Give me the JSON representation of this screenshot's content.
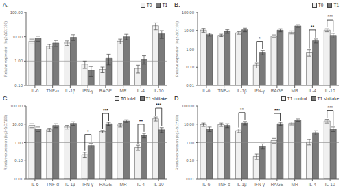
{
  "chart_data": [
    {
      "type": "bar",
      "title": "A.",
      "categories": [
        "IL-6",
        "TNF-α",
        "IL-1β",
        "IFN-γ",
        "RAGE",
        "MR",
        "IL-4",
        "IL-10"
      ],
      "series": [
        {
          "name": "T0",
          "color": "#f0f0f0",
          "values": [
            6.5,
            4.0,
            5.5,
            0.75,
            0.45,
            6.5,
            0.5,
            28.0
          ],
          "errors": [
            1.5,
            0.8,
            1.2,
            0.25,
            0.12,
            1.5,
            0.18,
            9.0
          ]
        },
        {
          "name": "T1",
          "color": "#7a7a7a",
          "values": [
            8.5,
            5.5,
            9.5,
            0.42,
            1.3,
            10.0,
            1.2,
            13.0
          ],
          "errors": [
            2.0,
            1.5,
            2.5,
            0.18,
            0.6,
            2.5,
            0.45,
            4.5
          ]
        }
      ],
      "ylim": [
        0.1,
        100.0
      ],
      "yticks": [
        {
          "value": 0.1,
          "label": "0.10"
        },
        {
          "value": 1.0,
          "label": "1.00"
        },
        {
          "value": 10.0,
          "label": "10.00"
        },
        {
          "value": 100.0,
          "label": "100.00"
        }
      ],
      "log": "y",
      "ylabel": "Relative expression (log2-ΔCt*100)",
      "legend": "upper right",
      "hlines": [
        1.0
      ],
      "annotations": []
    },
    {
      "type": "bar",
      "title": "B.",
      "categories": [
        "IL-6",
        "TNF-α",
        "IL-1β",
        "IFN-γ",
        "RAGE",
        "MR",
        "IL-4",
        "IL-10"
      ],
      "series": [
        {
          "name": "T0",
          "color": "#f0f0f0",
          "values": [
            10.5,
            5.5,
            7.5,
            0.13,
            5.0,
            8.0,
            0.65,
            10.5
          ],
          "errors": [
            2.5,
            0.8,
            1.2,
            0.04,
            0.8,
            1.5,
            0.25,
            2.0
          ]
        },
        {
          "name": "T1",
          "color": "#7a7a7a",
          "values": [
            6.0,
            9.0,
            11.0,
            0.65,
            10.5,
            18.0,
            2.8,
            5.5
          ],
          "errors": [
            1.0,
            2.0,
            2.5,
            0.18,
            2.0,
            3.0,
            0.7,
            1.5
          ]
        }
      ],
      "ylim": [
        0.01,
        100.0
      ],
      "yticks": [
        {
          "value": 0.01,
          "label": "0.01"
        },
        {
          "value": 0.1,
          "label": "0.10"
        },
        {
          "value": 1.0,
          "label": "1.00"
        },
        {
          "value": 10.0,
          "label": "10.00"
        },
        {
          "value": 100.0,
          "label": "100.00"
        }
      ],
      "log": "y",
      "ylabel": "Relative expression (log2-ΔCt*100)",
      "legend": "upper right",
      "hlines": [
        1.0
      ],
      "annotations": [
        {
          "text": "*",
          "category": "IFN-γ"
        },
        {
          "text": "**",
          "category": "IL-4"
        },
        {
          "text": "***",
          "category": "IL-10"
        }
      ]
    },
    {
      "type": "bar",
      "title": "C.",
      "categories": [
        "IL-6",
        "TNF-α",
        "IL-1β",
        "IFN-γ",
        "RAGE",
        "MR",
        "IL-4",
        "IL-10"
      ],
      "series": [
        {
          "name": "T0 total",
          "color": "#f0f0f0",
          "values": [
            8.5,
            5.0,
            7.0,
            0.22,
            4.0,
            9.0,
            0.55,
            20.0
          ],
          "errors": [
            2.0,
            1.0,
            1.5,
            0.07,
            0.6,
            2.0,
            0.18,
            5.0
          ]
        },
        {
          "name": "T1 shiitake",
          "color": "#7a7a7a",
          "values": [
            5.5,
            8.5,
            11.0,
            0.7,
            10.5,
            15.0,
            2.5,
            5.0
          ],
          "errors": [
            1.5,
            2.0,
            2.5,
            0.2,
            2.0,
            2.5,
            0.7,
            1.5
          ]
        }
      ],
      "ylim": [
        0.01,
        100.0
      ],
      "yticks": [
        {
          "value": 0.01,
          "label": "0.01"
        },
        {
          "value": 0.1,
          "label": "0.10"
        },
        {
          "value": 1.0,
          "label": "1.00"
        },
        {
          "value": 10.0,
          "label": "10.00"
        },
        {
          "value": 100.0,
          "label": "100.00"
        }
      ],
      "log": "y",
      "ylabel": "Relative expression (log2-ΔCt*100)",
      "legend": "upper right",
      "hlines": [
        1.0
      ],
      "annotations": [
        {
          "text": "*",
          "category": "IFN-γ"
        },
        {
          "text": "***",
          "category": "RAGE"
        },
        {
          "text": "**",
          "category": "IL-4"
        },
        {
          "text": "***",
          "category": "IL-10"
        }
      ]
    },
    {
      "type": "bar",
      "title": "D.",
      "categories": [
        "IL-6",
        "TNF-α",
        "IL-1β",
        "IFN-γ",
        "RAGE",
        "MR",
        "IL-4",
        "IL-10"
      ],
      "series": [
        {
          "name": "T1 control",
          "color": "#f0f0f0",
          "values": [
            9.5,
            9.5,
            4.5,
            0.18,
            1.3,
            11.0,
            1.1,
            15.0
          ],
          "errors": [
            2.0,
            2.0,
            1.0,
            0.06,
            0.4,
            2.0,
            0.35,
            3.5
          ]
        },
        {
          "name": "T1 shiitake",
          "color": "#7a7a7a",
          "values": [
            5.5,
            8.5,
            11.5,
            0.65,
            10.5,
            17.0,
            3.5,
            5.5
          ],
          "errors": [
            1.5,
            2.0,
            2.5,
            0.2,
            2.0,
            2.5,
            0.9,
            1.5
          ]
        }
      ],
      "ylim": [
        0.01,
        100.0
      ],
      "yticks": [
        {
          "value": 0.01,
          "label": "0.01"
        },
        {
          "value": 0.1,
          "label": "0.10"
        },
        {
          "value": 1.0,
          "label": "1.00"
        },
        {
          "value": 10.0,
          "label": "10.00"
        },
        {
          "value": 100.0,
          "label": "100.00"
        }
      ],
      "log": "y",
      "ylabel": "Relative expression (log2-ΔCt*100)",
      "legend": "upper right",
      "hlines": [
        1.0
      ],
      "annotations": [
        {
          "text": "**",
          "category": "IL-1β"
        },
        {
          "text": "***",
          "category": "RAGE"
        },
        {
          "text": "***",
          "category": "IL-10"
        }
      ]
    }
  ]
}
